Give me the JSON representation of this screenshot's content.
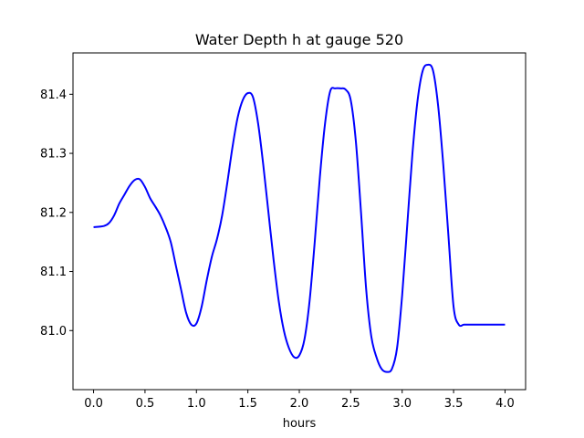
{
  "chart_data": {
    "type": "line",
    "title": "Water Depth h at gauge 520",
    "xlabel": "hours",
    "ylabel": "",
    "xlim": [
      -0.2,
      4.2
    ],
    "ylim": [
      80.9,
      81.47
    ],
    "xticks": [
      0.0,
      0.5,
      1.0,
      1.5,
      2.0,
      2.5,
      3.0,
      3.5,
      4.0
    ],
    "xtick_labels": [
      "0.0",
      "0.5",
      "1.0",
      "1.5",
      "2.0",
      "2.5",
      "3.0",
      "3.5",
      "4.0"
    ],
    "yticks": [
      81.0,
      81.1,
      81.2,
      81.3,
      81.4
    ],
    "ytick_labels": [
      "81.0",
      "81.1",
      "81.2",
      "81.3",
      "81.4"
    ],
    "grid": false,
    "series": [
      {
        "color": "#0000ff",
        "x": [
          0.0,
          0.1,
          0.15,
          0.2,
          0.25,
          0.3,
          0.35,
          0.4,
          0.45,
          0.5,
          0.55,
          0.6,
          0.65,
          0.7,
          0.75,
          0.8,
          0.85,
          0.9,
          0.95,
          1.0,
          1.05,
          1.1,
          1.15,
          1.2,
          1.25,
          1.3,
          1.35,
          1.4,
          1.45,
          1.5,
          1.55,
          1.6,
          1.65,
          1.7,
          1.75,
          1.8,
          1.85,
          1.9,
          1.95,
          2.0,
          2.05,
          2.1,
          2.15,
          2.2,
          2.25,
          2.3,
          2.35,
          2.4,
          2.45,
          2.5,
          2.55,
          2.6,
          2.65,
          2.7,
          2.75,
          2.8,
          2.85,
          2.9,
          2.95,
          3.0,
          3.05,
          3.1,
          3.15,
          3.2,
          3.25,
          3.3,
          3.35,
          3.4,
          3.45,
          3.5,
          3.55,
          3.6,
          3.65,
          3.7,
          3.75,
          3.8,
          3.85,
          3.9,
          3.95,
          4.0
        ],
        "y": [
          81.175,
          81.177,
          81.182,
          81.195,
          81.215,
          81.23,
          81.245,
          81.255,
          81.256,
          81.243,
          81.224,
          81.21,
          81.195,
          81.175,
          81.15,
          81.11,
          81.07,
          81.03,
          81.01,
          81.012,
          81.04,
          81.085,
          81.125,
          81.155,
          81.195,
          81.25,
          81.31,
          81.36,
          81.39,
          81.402,
          81.395,
          81.35,
          81.28,
          81.2,
          81.12,
          81.05,
          81.0,
          80.97,
          80.955,
          80.958,
          80.985,
          81.05,
          81.15,
          81.26,
          81.35,
          81.405,
          81.41,
          81.41,
          81.408,
          81.39,
          81.32,
          81.2,
          81.07,
          80.99,
          80.955,
          80.935,
          80.93,
          80.935,
          80.97,
          81.06,
          81.18,
          81.3,
          81.39,
          81.44,
          81.45,
          81.44,
          81.38,
          81.28,
          81.16,
          81.04,
          81.01,
          81.01,
          81.01,
          81.01,
          81.01,
          81.01,
          81.01,
          81.01,
          81.01,
          81.01
        ]
      }
    ]
  }
}
